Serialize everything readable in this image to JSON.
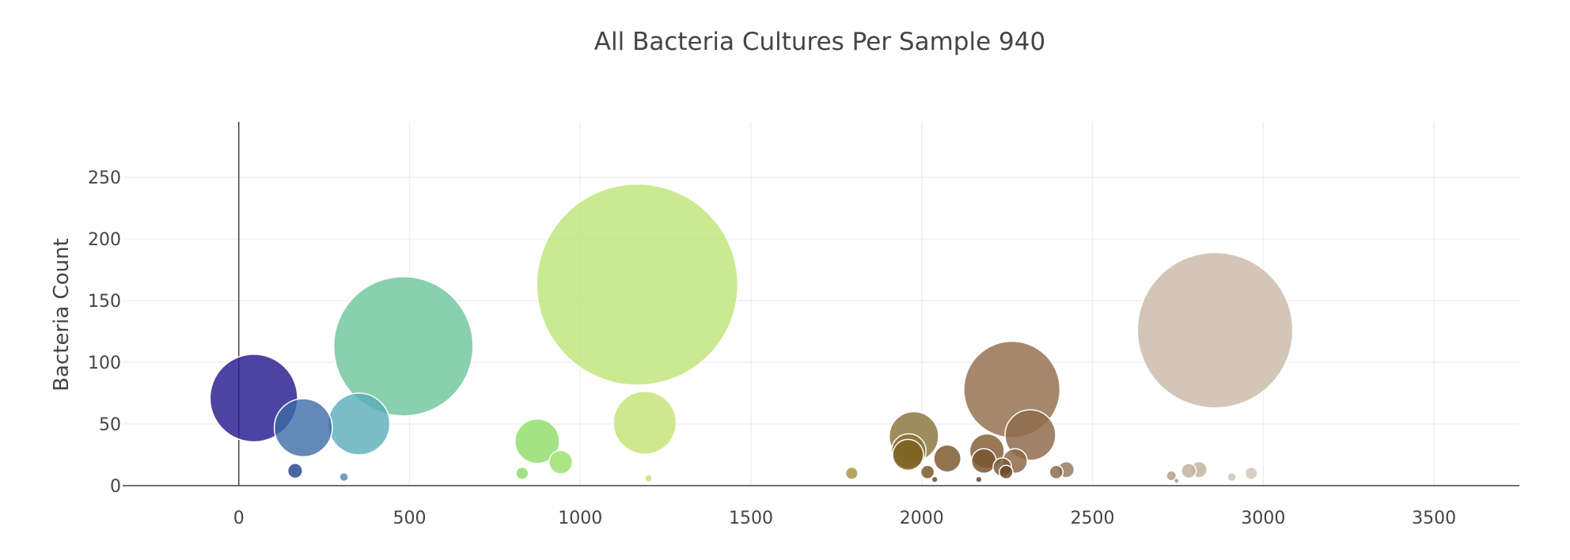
{
  "chart_data": {
    "type": "scatter",
    "title": "All Bacteria Cultures Per Sample 940",
    "xlabel": "",
    "ylabel": "Bacteria Count",
    "xlim": [
      -340,
      3750
    ],
    "ylim": [
      0,
      295
    ],
    "xticks": [
      0,
      500,
      1000,
      1500,
      2000,
      2500,
      3000,
      3500
    ],
    "yticks": [
      0,
      50,
      100,
      150,
      200,
      250
    ],
    "grid": true,
    "legend": "none",
    "colorscale": "Earth",
    "points": [
      {
        "x": 44,
        "y": 71,
        "color": "#2b2392",
        "opacity": 0.85
      },
      {
        "x": 165,
        "y": 12,
        "color": "#2c4a94",
        "opacity": 0.85
      },
      {
        "x": 189,
        "y": 47,
        "color": "#3d6aa6",
        "opacity": 0.8
      },
      {
        "x": 308,
        "y": 7,
        "color": "#4a8aa8",
        "opacity": 0.8
      },
      {
        "x": 352,
        "y": 50,
        "color": "#5aacb8",
        "opacity": 0.8
      },
      {
        "x": 482,
        "y": 113,
        "color": "#6cc49a",
        "opacity": 0.8
      },
      {
        "x": 830,
        "y": 10,
        "color": "#8ad868",
        "opacity": 0.8
      },
      {
        "x": 874,
        "y": 36,
        "color": "#8cdc64",
        "opacity": 0.8
      },
      {
        "x": 943,
        "y": 19,
        "color": "#96de68",
        "opacity": 0.8
      },
      {
        "x": 1167,
        "y": 163,
        "color": "#bde474",
        "opacity": 0.8
      },
      {
        "x": 1189,
        "y": 51,
        "color": "#c2e272",
        "opacity": 0.8
      },
      {
        "x": 1200,
        "y": 6,
        "color": "#c4e070",
        "opacity": 0.8
      },
      {
        "x": 1795,
        "y": 10,
        "color": "#a89548",
        "opacity": 0.85
      },
      {
        "x": 1977,
        "y": 40,
        "color": "#8e7840",
        "opacity": 0.85
      },
      {
        "x": 1962,
        "y": 28,
        "color": "#8a7236",
        "opacity": 0.85
      },
      {
        "x": 1960,
        "y": 25,
        "color": "#7c6122",
        "opacity": 0.85
      },
      {
        "x": 2017,
        "y": 11,
        "color": "#7a5a28",
        "opacity": 0.85
      },
      {
        "x": 2038,
        "y": 5,
        "color": "#6f4d26",
        "opacity": 0.85
      },
      {
        "x": 2075,
        "y": 22,
        "color": "#7e5c30",
        "opacity": 0.85
      },
      {
        "x": 2167,
        "y": 5,
        "color": "#6a4a28",
        "opacity": 0.85
      },
      {
        "x": 2182,
        "y": 20,
        "color": "#7a5530",
        "opacity": 0.85
      },
      {
        "x": 2191,
        "y": 28,
        "color": "#86603a",
        "opacity": 0.85
      },
      {
        "x": 2236,
        "y": 15,
        "color": "#7c5a34",
        "opacity": 0.85
      },
      {
        "x": 2247,
        "y": 11,
        "color": "#6a4a2c",
        "opacity": 0.85
      },
      {
        "x": 2264,
        "y": 78,
        "color": "#957352",
        "opacity": 0.85
      },
      {
        "x": 2273,
        "y": 20,
        "color": "#8e6a48",
        "opacity": 0.85
      },
      {
        "x": 2318,
        "y": 41,
        "color": "#8e6c4c",
        "opacity": 0.85
      },
      {
        "x": 2394,
        "y": 11,
        "color": "#8e6c50",
        "opacity": 0.85
      },
      {
        "x": 2423,
        "y": 13,
        "color": "#9a7c62",
        "opacity": 0.85
      },
      {
        "x": 2731,
        "y": 8,
        "color": "#b4a08a",
        "opacity": 0.85
      },
      {
        "x": 2746,
        "y": 4,
        "color": "#a88e78",
        "opacity": 0.85
      },
      {
        "x": 2782,
        "y": 12,
        "color": "#c2b09e",
        "opacity": 0.85
      },
      {
        "x": 2812,
        "y": 13,
        "color": "#c4b4a2",
        "opacity": 0.85
      },
      {
        "x": 2859,
        "y": 126,
        "color": "#c8b8a6",
        "opacity": 0.8
      },
      {
        "x": 2908,
        "y": 7,
        "color": "#cfc2b2",
        "opacity": 0.85
      },
      {
        "x": 2965,
        "y": 10,
        "color": "#d3c7b8",
        "opacity": 0.85
      }
    ]
  }
}
